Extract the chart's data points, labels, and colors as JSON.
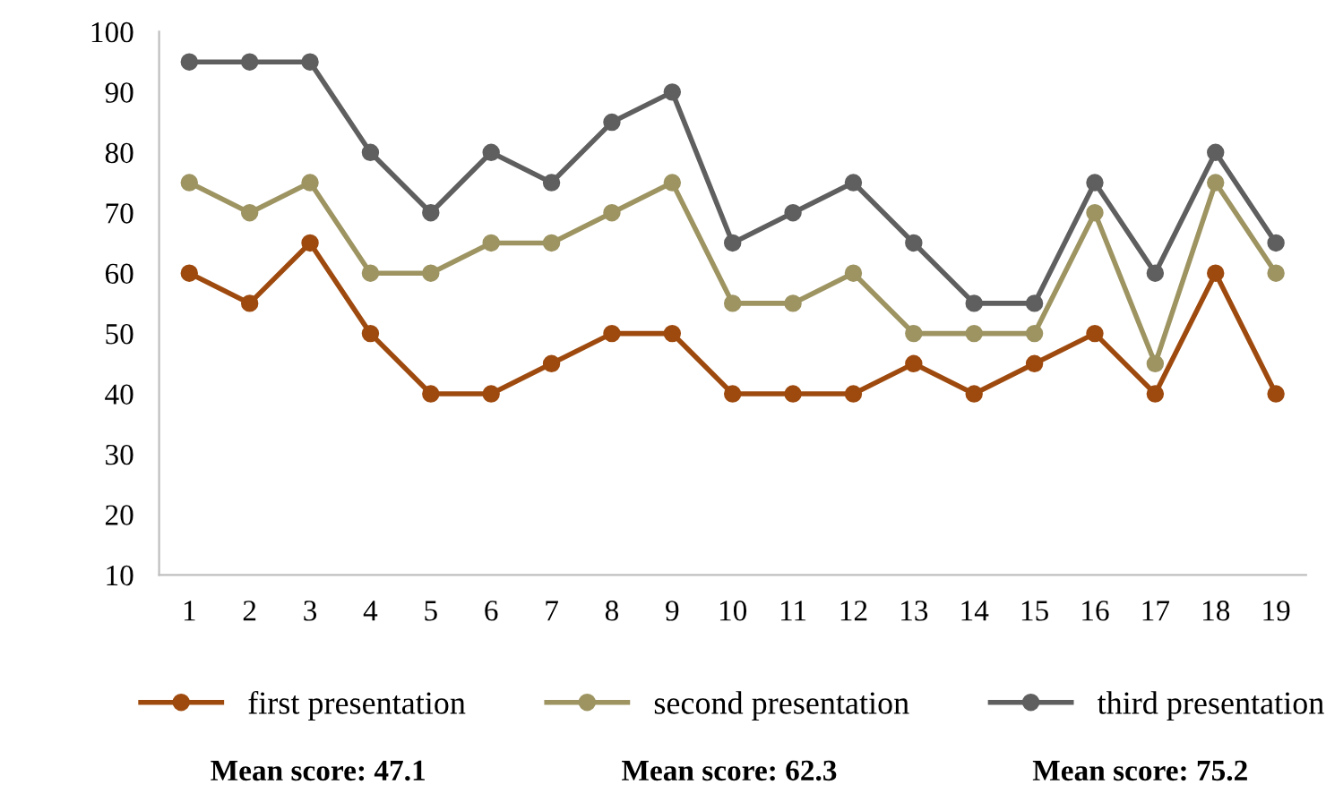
{
  "chart_data": {
    "type": "line",
    "categories": [
      "1",
      "2",
      "3",
      "4",
      "5",
      "6",
      "7",
      "8",
      "9",
      "10",
      "11",
      "12",
      "13",
      "14",
      "15",
      "16",
      "17",
      "18",
      "19"
    ],
    "series": [
      {
        "name": "first presentation",
        "color": "#9e4a0f",
        "values": [
          60,
          55,
          65,
          50,
          40,
          40,
          45,
          50,
          50,
          40,
          40,
          40,
          45,
          40,
          45,
          50,
          40,
          60,
          40
        ]
      },
      {
        "name": "second presentation",
        "color": "#9d9462",
        "values": [
          75,
          70,
          75,
          60,
          60,
          65,
          65,
          70,
          75,
          55,
          55,
          60,
          50,
          50,
          50,
          70,
          45,
          75,
          60
        ]
      },
      {
        "name": "third presentation",
        "color": "#5f5f5f",
        "values": [
          95,
          95,
          95,
          80,
          70,
          80,
          75,
          85,
          90,
          65,
          70,
          75,
          65,
          55,
          55,
          75,
          60,
          80,
          65
        ]
      }
    ],
    "ylim": [
      10,
      100
    ],
    "yticks": [
      10,
      20,
      30,
      40,
      50,
      60,
      70,
      80,
      90,
      100
    ],
    "grid": false,
    "legend": "bottom",
    "marker": "circle",
    "line_style": "solid",
    "annotations": [
      "Mean score: 47.1",
      "Mean score: 62.3",
      "Mean score: 75.2"
    ]
  }
}
